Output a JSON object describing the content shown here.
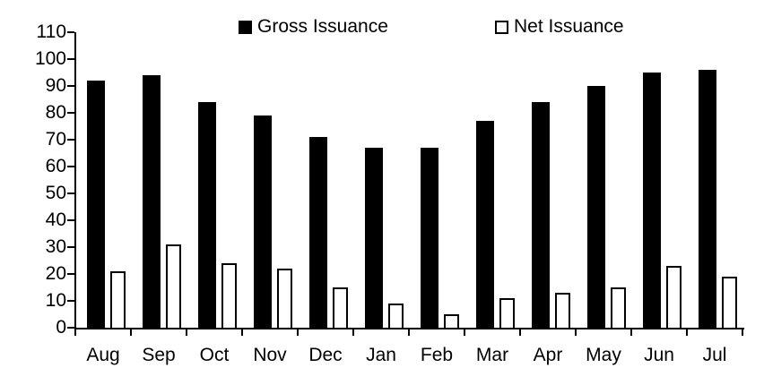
{
  "chart_data": {
    "type": "bar",
    "categories": [
      "Aug",
      "Sep",
      "Oct",
      "Nov",
      "Dec",
      "Jan",
      "Feb",
      "Mar",
      "Apr",
      "May",
      "Jun",
      "Jul"
    ],
    "series": [
      {
        "name": "Gross Issuance",
        "swatch": "filled-black-square",
        "fill": "#000000",
        "values": [
          92,
          94,
          84,
          79,
          71,
          67,
          67,
          77,
          84,
          90,
          95,
          96
        ]
      },
      {
        "name": "Net Issuance",
        "swatch": "open-white-square",
        "fill": "#ffffff",
        "border": "#000000",
        "values": [
          21,
          31,
          24,
          22,
          15,
          9,
          5,
          11,
          13,
          15,
          23,
          19
        ]
      }
    ],
    "title": "",
    "xlabel": "",
    "ylabel": "",
    "ylim": [
      0,
      110
    ],
    "ytick_step": 10,
    "grid": false,
    "legend_position": "top",
    "axis_color": "#000000",
    "background_color": "#ffffff"
  }
}
